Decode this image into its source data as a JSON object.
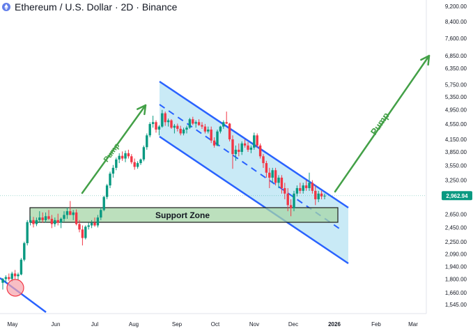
{
  "title": "Ethereum / U.S. Dollar · 2D · Binance",
  "colors": {
    "up": "#089981",
    "down": "#f23645",
    "channel_line": "#2962ff",
    "channel_fill": "#bfe6f5",
    "support_fill": "#a5d6a7",
    "arrow": "#43a047",
    "badge": "#089981",
    "circle_fill": "#f5a3ab",
    "circle_stroke": "#f23645"
  },
  "chart_data": {
    "type": "candlestick",
    "title": "Ethereum / U.S. Dollar · 2D · Binance",
    "y_scale": "log",
    "ylim": [
      1500,
      9500
    ],
    "x_ticks": [
      "May",
      "Jun",
      "Jul",
      "Aug",
      "Sep",
      "Oct",
      "Nov",
      "Dec",
      "2026",
      "Feb",
      "Mar"
    ],
    "y_ticks": [
      9200,
      8400,
      7600,
      6850,
      6350,
      5750,
      5350,
      4950,
      4550,
      4150,
      3850,
      3550,
      3250,
      2962.94,
      2650,
      2450,
      2250,
      2090,
      1940,
      1800,
      1660,
      1545
    ],
    "y_tick_labels": [
      "9,200.00",
      "8,400.00",
      "7,600.00",
      "6,850.00",
      "6,350.00",
      "5,750.00",
      "5,350.00",
      "4,950.00",
      "4,550.00",
      "4,150.00",
      "3,850.00",
      "3,550.00",
      "3,250.00",
      "2,962.94",
      "2,650.00",
      "2,450.00",
      "2,250.00",
      "2,090.00",
      "1,940.00",
      "1,800.00",
      "1,660.00",
      "1,545.00"
    ],
    "last_price": "2,962.94",
    "series": [
      {
        "values": [
          [
            1760,
            1810,
            1690,
            1800
          ],
          [
            1800,
            1840,
            1760,
            1820
          ],
          [
            1820,
            1860,
            1780,
            1800
          ],
          [
            1800,
            1880,
            1770,
            1860
          ],
          [
            1860,
            1900,
            1800,
            1830
          ],
          [
            1830,
            1870,
            1790,
            1850
          ],
          [
            1850,
            2040,
            1840,
            2020
          ],
          [
            2020,
            2250,
            2000,
            2230
          ],
          [
            2230,
            2560,
            2200,
            2530
          ],
          [
            2530,
            2620,
            2480,
            2560
          ],
          [
            2560,
            2610,
            2450,
            2500
          ],
          [
            2500,
            2600,
            2470,
            2560
          ],
          [
            2560,
            2700,
            2520,
            2600
          ],
          [
            2600,
            2680,
            2520,
            2560
          ],
          [
            2560,
            2680,
            2520,
            2620
          ],
          [
            2620,
            2720,
            2560,
            2580
          ],
          [
            2580,
            2640,
            2440,
            2500
          ],
          [
            2500,
            2600,
            2460,
            2560
          ],
          [
            2560,
            2660,
            2480,
            2520
          ],
          [
            2520,
            2600,
            2440,
            2580
          ],
          [
            2580,
            2700,
            2540,
            2640
          ],
          [
            2640,
            2760,
            2580,
            2700
          ],
          [
            2700,
            2870,
            2650,
            2640
          ],
          [
            2640,
            2720,
            2560,
            2680
          ],
          [
            2680,
            2730,
            2480,
            2500
          ],
          [
            2500,
            2560,
            2380,
            2420
          ],
          [
            2420,
            2480,
            2200,
            2300
          ],
          [
            2300,
            2480,
            2280,
            2460
          ],
          [
            2460,
            2520,
            2420,
            2480
          ],
          [
            2480,
            2560,
            2440,
            2520
          ],
          [
            2520,
            2600,
            2460,
            2480
          ],
          [
            2480,
            2640,
            2450,
            2600
          ],
          [
            2600,
            2760,
            2560,
            2720
          ],
          [
            2720,
            2960,
            2700,
            2940
          ],
          [
            2940,
            3180,
            2900,
            3150
          ],
          [
            3150,
            3420,
            3100,
            3380
          ],
          [
            3380,
            3560,
            3300,
            3500
          ],
          [
            3500,
            3720,
            3450,
            3680
          ],
          [
            3680,
            3820,
            3600,
            3760
          ],
          [
            3760,
            3860,
            3650,
            3700
          ],
          [
            3700,
            3880,
            3620,
            3820
          ],
          [
            3820,
            3900,
            3700,
            3750
          ],
          [
            3750,
            3800,
            3580,
            3620
          ],
          [
            3620,
            3700,
            3460,
            3520
          ],
          [
            3520,
            3640,
            3480,
            3600
          ],
          [
            3600,
            3700,
            3560,
            3680
          ],
          [
            3680,
            4000,
            3640,
            3960
          ],
          [
            3960,
            4300,
            3900,
            4250
          ],
          [
            4250,
            4600,
            4200,
            4550
          ],
          [
            4550,
            4780,
            4450,
            4600
          ],
          [
            4600,
            4650,
            4320,
            4400
          ],
          [
            4400,
            4520,
            4250,
            4480
          ],
          [
            4480,
            4950,
            4450,
            4850
          ],
          [
            4850,
            4900,
            4500,
            4600
          ],
          [
            4600,
            4700,
            4480,
            4650
          ],
          [
            4650,
            4680,
            4420,
            4450
          ],
          [
            4450,
            4550,
            4300,
            4500
          ],
          [
            4500,
            4560,
            4350,
            4420
          ],
          [
            4420,
            4500,
            4250,
            4300
          ],
          [
            4300,
            4450,
            4250,
            4400
          ],
          [
            4400,
            4500,
            4300,
            4450
          ],
          [
            4450,
            4720,
            4420,
            4680
          ],
          [
            4680,
            4750,
            4520,
            4560
          ],
          [
            4560,
            4650,
            4450,
            4600
          ],
          [
            4600,
            4680,
            4500,
            4520
          ],
          [
            4520,
            4600,
            4420,
            4480
          ],
          [
            4480,
            4550,
            4300,
            4350
          ],
          [
            4350,
            4480,
            4300,
            4400
          ],
          [
            4400,
            4480,
            4060,
            4120
          ],
          [
            4120,
            4200,
            3950,
            4000
          ],
          [
            4000,
            4400,
            3980,
            4350
          ],
          [
            4350,
            4500,
            4300,
            4480
          ],
          [
            4480,
            4650,
            4420,
            4600
          ],
          [
            4600,
            4900,
            4550,
            4560
          ],
          [
            4560,
            4580,
            4100,
            4150
          ],
          [
            4150,
            4250,
            3480,
            3800
          ],
          [
            3800,
            4000,
            3650,
            3900
          ],
          [
            3900,
            4050,
            3750,
            3850
          ],
          [
            3850,
            4100,
            3780,
            4050
          ],
          [
            4050,
            4150,
            3950,
            4000
          ],
          [
            4000,
            4080,
            3850,
            3900
          ],
          [
            3900,
            4000,
            3820,
            3950
          ],
          [
            3950,
            4320,
            3900,
            4250
          ],
          [
            4250,
            4300,
            3950,
            4000
          ],
          [
            4000,
            4050,
            3700,
            3750
          ],
          [
            3750,
            3800,
            3500,
            3600
          ],
          [
            3600,
            3650,
            3300,
            3400
          ],
          [
            3400,
            3500,
            3100,
            3300
          ],
          [
            3300,
            3500,
            3200,
            3450
          ],
          [
            3450,
            3500,
            3150,
            3200
          ],
          [
            3200,
            3350,
            3100,
            3300
          ],
          [
            3300,
            3350,
            3000,
            3100
          ],
          [
            3100,
            3200,
            2900,
            3000
          ],
          [
            3000,
            3100,
            2700,
            2800
          ],
          [
            2800,
            2900,
            2620,
            2750
          ],
          [
            2750,
            3050,
            2700,
            3000
          ],
          [
            3000,
            3150,
            2950,
            3100
          ],
          [
            3100,
            3200,
            3000,
            3050
          ],
          [
            3050,
            3200,
            3000,
            3150
          ],
          [
            3150,
            3250,
            3050,
            3100
          ],
          [
            3100,
            3400,
            3050,
            3200
          ],
          [
            3200,
            3250,
            3000,
            3050
          ],
          [
            3050,
            3150,
            2800,
            2900
          ],
          [
            2900,
            3050,
            2850,
            3000
          ],
          [
            3000,
            3050,
            2900,
            2950
          ],
          [
            2950,
            3000,
            2900,
            2962.94
          ]
        ]
      }
    ]
  },
  "annotations": {
    "support_label": "Support Zone",
    "pump_labels": [
      "Pump",
      "Pump"
    ]
  }
}
